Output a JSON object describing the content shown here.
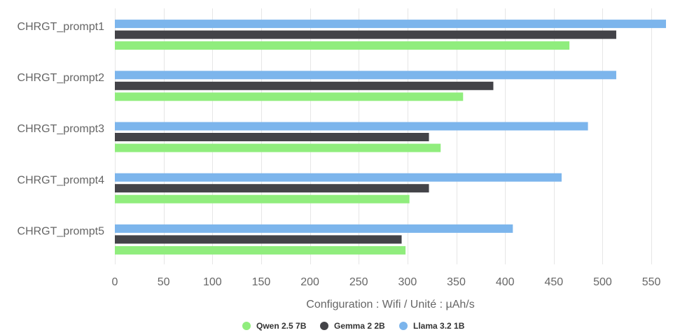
{
  "chart_data": {
    "type": "bar",
    "orientation": "horizontal",
    "categories": [
      "CHRGT_prompt1",
      "CHRGT_prompt2",
      "CHRGT_prompt3",
      "CHRGT_prompt4",
      "CHRGT_prompt5"
    ],
    "series": [
      {
        "name": "Llama 3.2 1B",
        "color": "#7cb5ec",
        "values": [
          565,
          514,
          485,
          458,
          408
        ]
      },
      {
        "name": "Gemma 2 2B",
        "color": "#434348",
        "values": [
          514,
          388,
          322,
          322,
          294
        ]
      },
      {
        "name": "Qwen 2.5 7B",
        "color": "#90ed7d",
        "values": [
          466,
          357,
          334,
          302,
          298
        ]
      }
    ],
    "legend_order": [
      "Qwen 2.5 7B",
      "Gemma 2 2B",
      "Llama 3.2 1B"
    ],
    "xlabel": "Configuration : Wifi / Unité : µAh/s",
    "ylabel": "",
    "xlim": [
      0,
      565
    ],
    "xticks": [
      0,
      50,
      100,
      150,
      200,
      250,
      300,
      350,
      400,
      450,
      500,
      550
    ],
    "grid": "vertical",
    "legend_position": "bottom-center"
  }
}
